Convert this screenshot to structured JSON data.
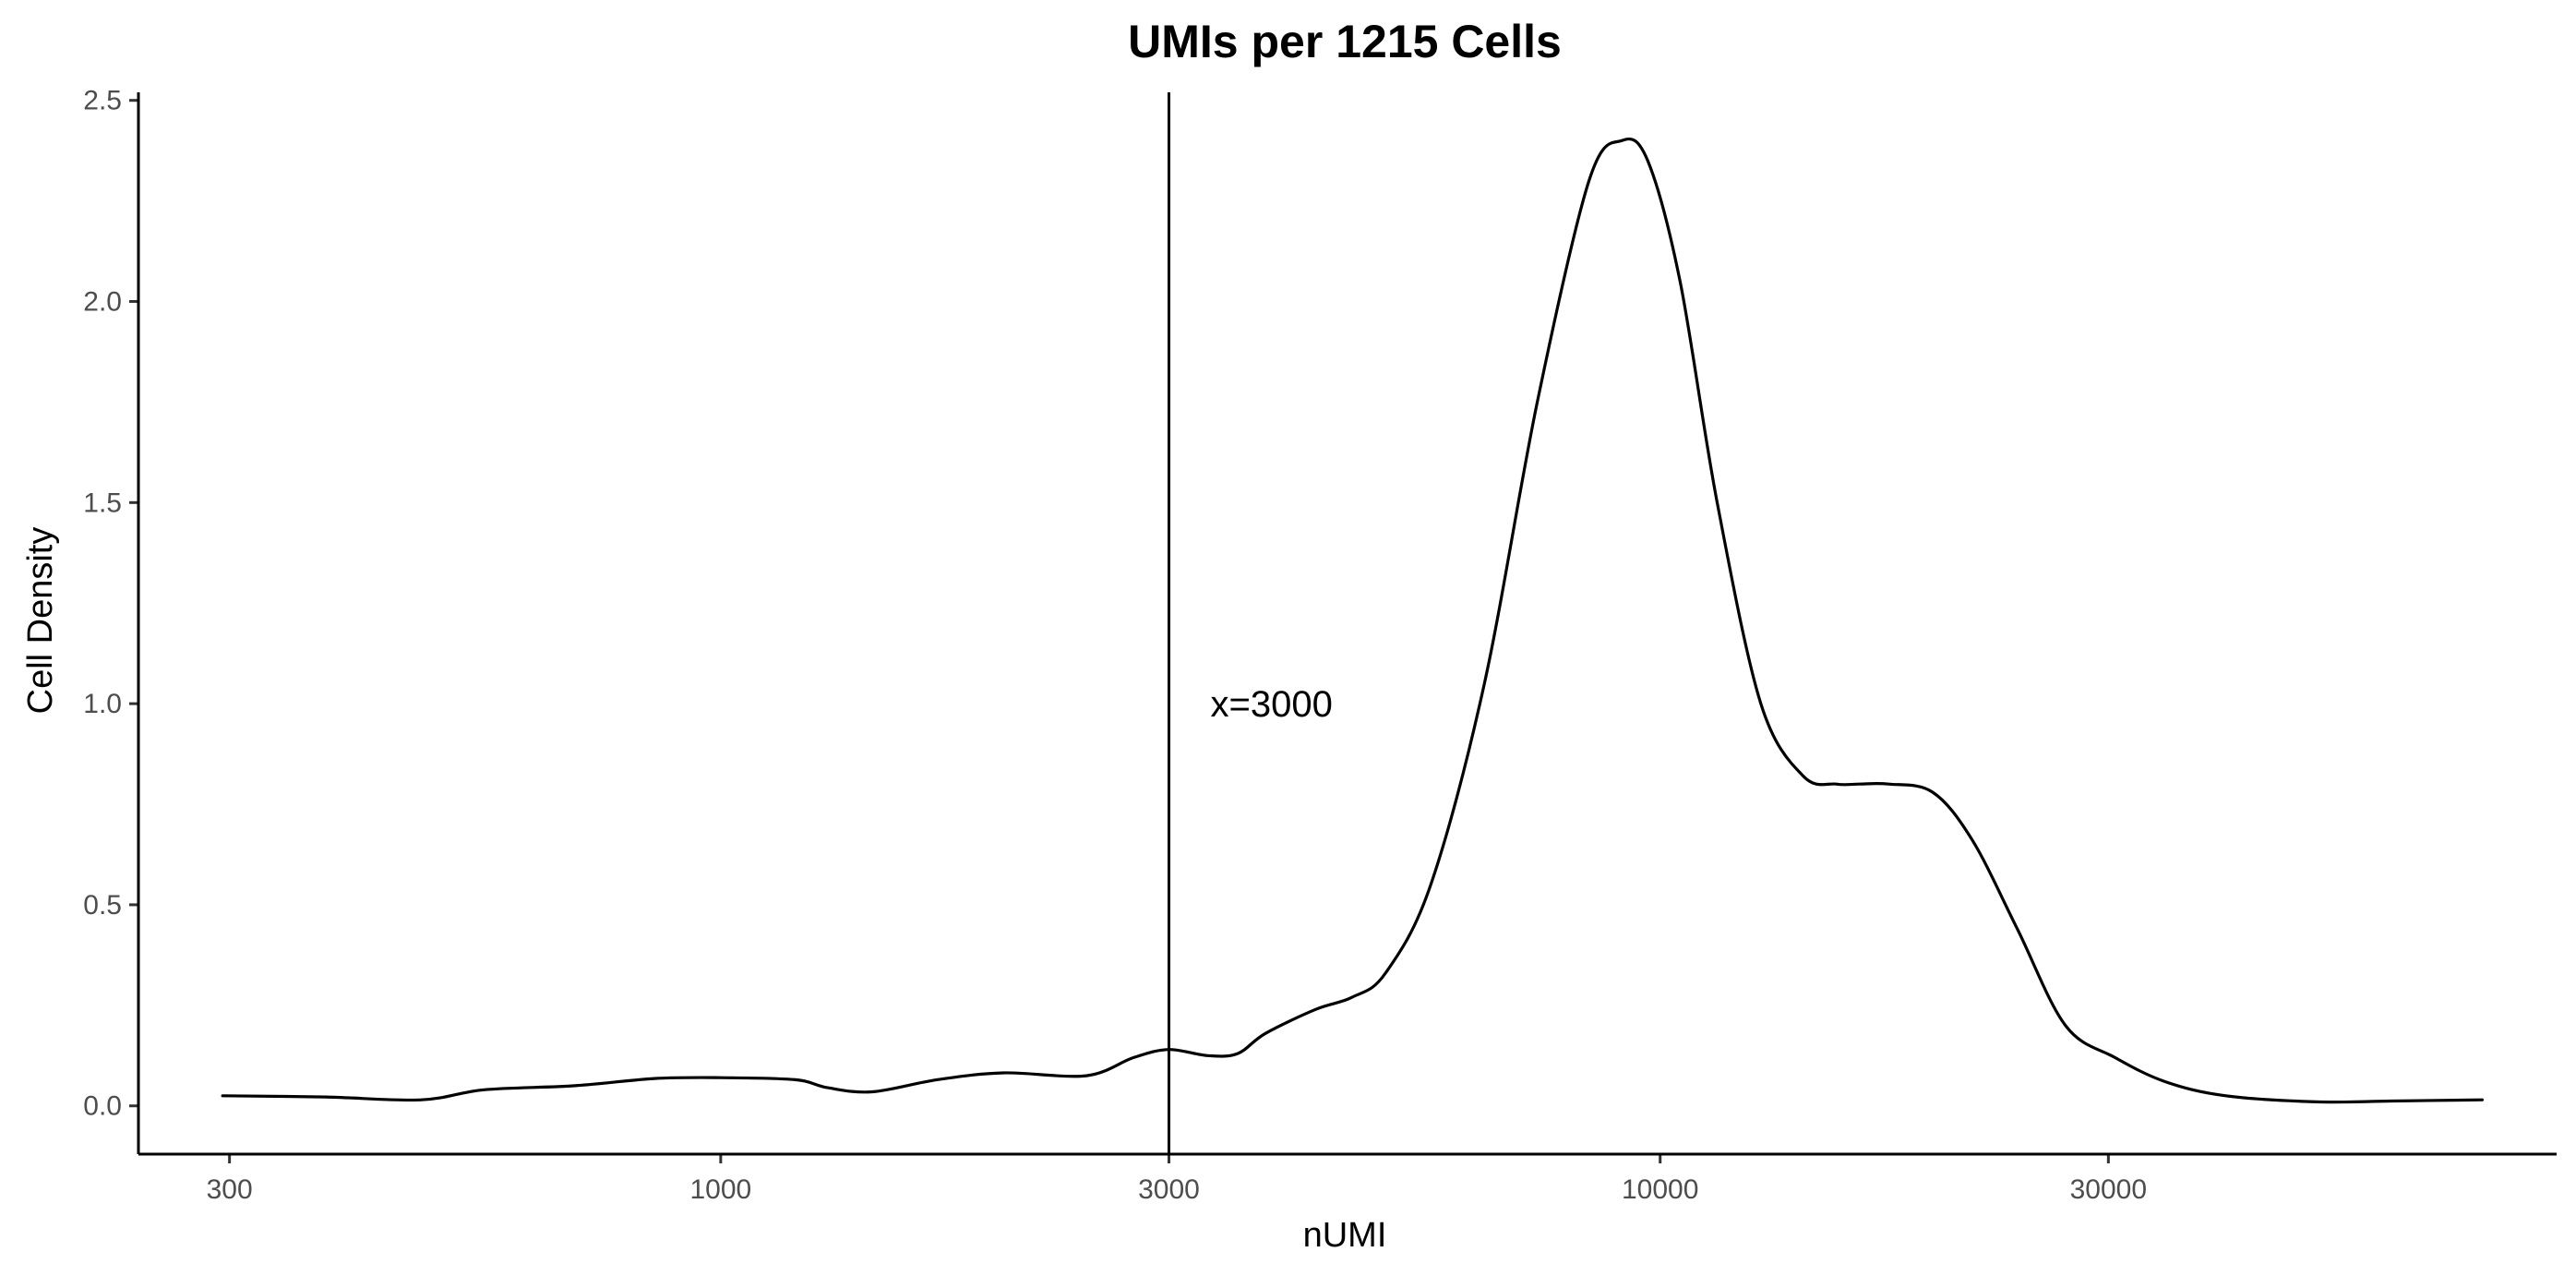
{
  "chart_data": {
    "type": "line",
    "title": "UMIs per 1215 Cells",
    "xlabel": "nUMI",
    "ylabel": "Cell Density",
    "x_scale": "log10",
    "xlim": [
      240,
      90000
    ],
    "ylim": [
      -0.12,
      2.52
    ],
    "x_ticks": [
      300,
      1000,
      3000,
      10000,
      30000
    ],
    "x_tick_labels": [
      "300",
      "1000",
      "3000",
      "10000",
      "30000"
    ],
    "y_ticks": [
      0.0,
      0.5,
      1.0,
      1.5,
      2.0,
      2.5
    ],
    "y_tick_labels": [
      "0.0",
      "0.5",
      "1.0",
      "1.5",
      "2.0",
      "2.5"
    ],
    "grid": false,
    "legend": "none",
    "vline": {
      "x": 3000,
      "label": "x=3000"
    },
    "series": [
      {
        "color": "#000000",
        "x": [
          295,
          380,
          480,
          560,
          700,
          850,
          1000,
          1200,
          1300,
          1450,
          1700,
          2000,
          2450,
          2750,
          3000,
          3300,
          3550,
          3800,
          4300,
          4700,
          5100,
          5700,
          6500,
          7400,
          8400,
          9100,
          9700,
          10500,
          11500,
          12800,
          14200,
          15400,
          16300,
          17500,
          19500,
          21500,
          24000,
          27000,
          30500,
          34500,
          40000,
          50000,
          60000,
          75000
        ],
        "y": [
          0.025,
          0.022,
          0.015,
          0.04,
          0.05,
          0.068,
          0.07,
          0.065,
          0.045,
          0.035,
          0.065,
          0.082,
          0.075,
          0.12,
          0.14,
          0.125,
          0.13,
          0.18,
          0.24,
          0.27,
          0.33,
          0.55,
          1.05,
          1.75,
          2.3,
          2.4,
          2.35,
          2.05,
          1.5,
          1.0,
          0.82,
          0.8,
          0.8,
          0.8,
          0.78,
          0.66,
          0.44,
          0.2,
          0.12,
          0.06,
          0.025,
          0.01,
          0.012,
          0.015
        ]
      }
    ]
  }
}
